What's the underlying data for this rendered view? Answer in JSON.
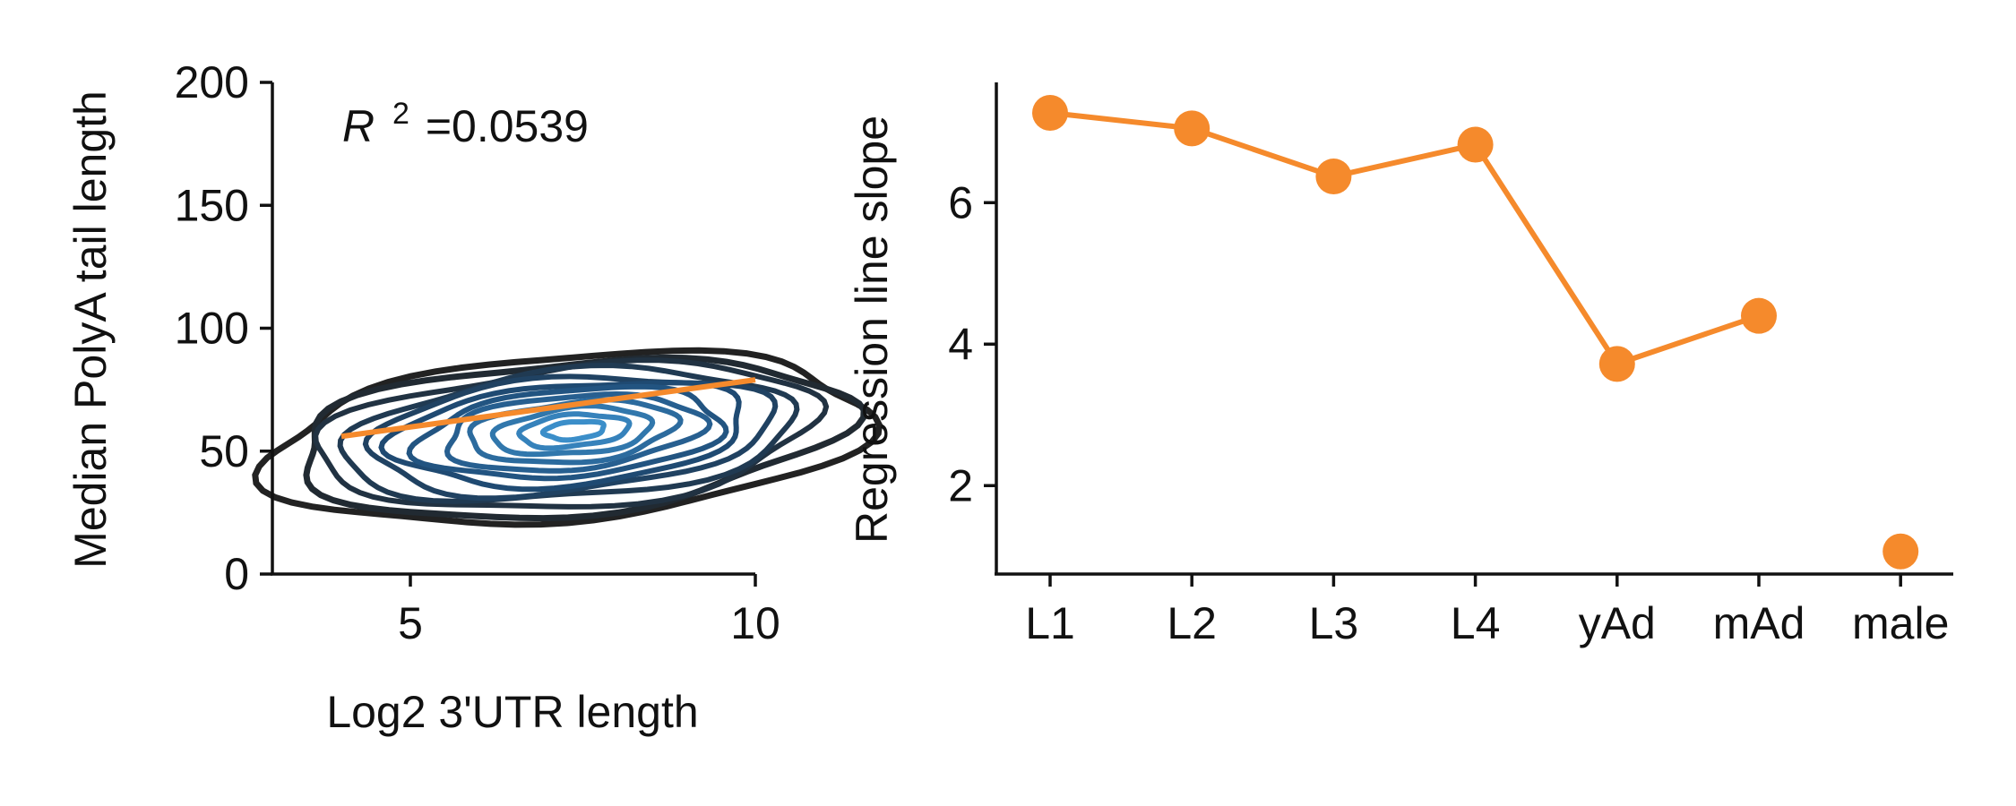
{
  "colors": {
    "regression": "#f58a2c",
    "contour_outer": "#222222",
    "contour_inner": "#1f4e7a",
    "contour_core": "#3b8ec9",
    "axis": "#111111"
  },
  "chart_data": [
    {
      "type": "density-contour",
      "xlabel": "Log2 3'UTR length",
      "ylabel": "Median PolyA tail length",
      "xlim": [
        3,
        10
      ],
      "ylim": [
        0,
        200
      ],
      "xticks": [
        5,
        10
      ],
      "yticks": [
        0,
        50,
        100,
        150,
        200
      ],
      "annotation": {
        "symbol": "R",
        "superscript": "2",
        "value": "=0.0539"
      },
      "regression_line": {
        "x": [
          4,
          10
        ],
        "y": [
          56,
          79
        ]
      },
      "density_center": {
        "x": 7.3,
        "y": 57
      },
      "grid": false
    },
    {
      "type": "line",
      "xlabel": "",
      "ylabel": "Regression line slope",
      "categories": [
        "L1",
        "L2",
        "L3",
        "L4",
        "yAd",
        "mAd",
        "male"
      ],
      "values": [
        7.27,
        7.05,
        6.37,
        6.82,
        3.72,
        4.4,
        1.07
      ],
      "line_segments": [
        [
          0,
          5
        ]
      ],
      "ylim": [
        0.75,
        7.7
      ],
      "yticks": [
        2,
        4,
        6
      ],
      "grid": false
    }
  ]
}
